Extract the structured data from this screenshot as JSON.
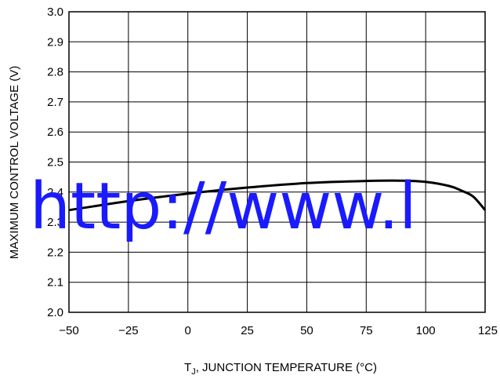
{
  "chart_data": {
    "type": "line",
    "title": "",
    "xlabel": "T",
    "xlabel_sub": "J",
    "xlabel_rest": ", JUNCTION TEMPERATURE (°C)",
    "ylabel": "MAXIMUM CONTROL VOLTAGE (V)",
    "xlim": [
      -50,
      125
    ],
    "ylim": [
      2.0,
      3.0
    ],
    "x_ticks": [
      -50,
      -25,
      0,
      25,
      50,
      75,
      100,
      125
    ],
    "x_tick_labels": [
      "−50",
      "−25",
      "0",
      "25",
      "50",
      "75",
      "100",
      "125"
    ],
    "y_ticks": [
      2.0,
      2.1,
      2.2,
      2.3,
      2.4,
      2.5,
      2.6,
      2.7,
      2.8,
      2.9,
      3.0
    ],
    "y_tick_labels": [
      "2.0",
      "2.1",
      "2.2",
      "2.3",
      "2.4",
      "2.5",
      "2.6",
      "2.7",
      "2.8",
      "2.9",
      "3.0"
    ],
    "grid": true,
    "series": [
      {
        "x": [
          -50,
          -25,
          0,
          25,
          50,
          75,
          90,
          100,
          110,
          115,
          120,
          125
        ],
        "y": [
          2.34,
          2.37,
          2.395,
          2.415,
          2.43,
          2.437,
          2.438,
          2.434,
          2.42,
          2.405,
          2.385,
          2.34
        ]
      }
    ],
    "colors": {
      "line": "#000000",
      "grid": "#000000",
      "watermark": "#1a1aff"
    }
  },
  "watermark": "http://www.l"
}
